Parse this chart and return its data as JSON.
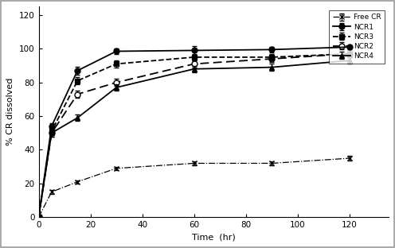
{
  "time": [
    0,
    5,
    15,
    30,
    60,
    90,
    120
  ],
  "FreeCR_mean": [
    0,
    15,
    21,
    29,
    32,
    32,
    35
  ],
  "FreeCR_err": [
    0,
    1.0,
    1.0,
    1.0,
    1.0,
    1.0,
    1.5
  ],
  "NCR1_mean": [
    0,
    54,
    87,
    98.5,
    99,
    99.5,
    101
  ],
  "NCR1_err": [
    0,
    2.0,
    2.5,
    1.5,
    2.5,
    1.5,
    1.5
  ],
  "NCR3_mean": [
    0,
    51,
    81,
    91,
    95,
    95,
    97
  ],
  "NCR3_err": [
    0,
    2.0,
    2.0,
    2.0,
    2.0,
    2.0,
    2.0
  ],
  "NCR2_mean": [
    0,
    50,
    73,
    80,
    91,
    94,
    97
  ],
  "NCR2_err": [
    0,
    2.0,
    2.0,
    2.0,
    2.0,
    2.0,
    2.0
  ],
  "NCR4_mean": [
    0,
    50,
    59,
    77,
    88,
    89,
    93
  ],
  "NCR4_err": [
    0,
    2.0,
    2.0,
    2.0,
    2.0,
    2.0,
    2.0
  ],
  "xlabel": "Time  (hr)",
  "ylabel": "% CR dissolved",
  "xlim": [
    0,
    135
  ],
  "ylim": [
    0,
    125
  ],
  "yticks": [
    0,
    20,
    40,
    60,
    80,
    100,
    120
  ],
  "xticks": [
    0,
    20,
    40,
    60,
    80,
    100,
    120
  ],
  "legend_labels": [
    "Free CR",
    "NCR1",
    "NCR3",
    "NCR2",
    "NCR4"
  ],
  "background_color": "#ffffff",
  "figure_border_color": "#aaaaaa"
}
